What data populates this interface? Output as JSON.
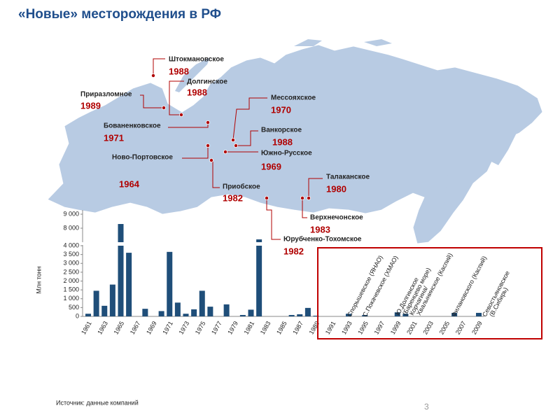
{
  "title": "«Новые» месторождения в РФ",
  "map_labels": [
    {
      "name": "Штокмановское",
      "year": "1988"
    },
    {
      "name": "Долгинское",
      "year": "1988"
    },
    {
      "name": "Приразломное",
      "year": "1989"
    },
    {
      "name": "Мессояхское",
      "year": "1970"
    },
    {
      "name": "Бованенковское",
      "year": "1971"
    },
    {
      "name": "Ванкорское",
      "year": "1988"
    },
    {
      "name": "Южно-Русское",
      "year": "1969"
    },
    {
      "name": "Ново-Портовское",
      "year": "1964"
    },
    {
      "name": "Приобское",
      "year": "1982"
    },
    {
      "name": "Талаканское",
      "year": "1980"
    },
    {
      "name": "Верхнечонское",
      "year": "1983"
    },
    {
      "name": "Юрубченко-Тохомское",
      "year": "1982"
    }
  ],
  "chart_data": {
    "type": "bar",
    "y_label": "Млн тонн",
    "color": "#1f4e79",
    "categories": [
      "1961",
      null,
      "1963",
      null,
      "1965",
      null,
      "1967",
      null,
      "1969",
      null,
      "1971",
      null,
      "1973",
      null,
      "1975",
      null,
      "1977",
      null,
      "1979",
      null,
      "1981",
      null,
      "1983",
      null,
      "1985",
      null,
      "1987",
      null,
      "1989",
      null,
      "1991",
      null,
      "1993",
      null,
      "1995",
      null,
      "1997",
      null,
      "1999",
      null,
      "2001",
      null,
      "2003",
      null,
      "2005",
      null,
      "2007",
      null,
      "2009"
    ],
    "values": [
      150,
      1450,
      600,
      1800,
      8300,
      3600,
      0,
      430,
      0,
      300,
      3650,
      780,
      150,
      400,
      1450,
      550,
      0,
      680,
      0,
      80,
      380,
      7200,
      0,
      0,
      0,
      80,
      120,
      480,
      40,
      0,
      0,
      0,
      150,
      0,
      80,
      0,
      0,
      0,
      230,
      150,
      0,
      0,
      0,
      0,
      0,
      200,
      0,
      0,
      200
    ],
    "ylim": [
      0,
      9300
    ],
    "y_break": [
      4000,
      7000
    ],
    "yticks": [
      0,
      500,
      {
        "value": 1000,
        "label": "1 000"
      },
      {
        "value": 1500,
        "label": "1 500"
      },
      {
        "value": 2000,
        "label": "2 000"
      },
      {
        "value": 2500,
        "label": "2 500"
      },
      {
        "value": 3000,
        "label": "3 000"
      },
      {
        "value": 3500,
        "label": "3 500"
      },
      {
        "value": 4000,
        "label": "4 000"
      },
      {
        "value": 8000,
        "label": "8 000"
      },
      {
        "value": 9000,
        "label": "9 000"
      }
    ],
    "annotations": [
      [
        "Спорышевское (ЯНАО)"
      ],
      [
        "С.Покачевское (ХМАО)"
      ],
      [
        "Ю.Долгинское",
        "(Баренцево море)"
      ],
      [
        "Корчагина/",
        "Хвалынинское (Каспий)"
      ],
      [
        "Филановского (Каспий)"
      ],
      [
        "Севостьяновское",
        "(В.Сибирь)"
      ]
    ]
  },
  "source": "Источник: данные компаний",
  "page_number": "3"
}
